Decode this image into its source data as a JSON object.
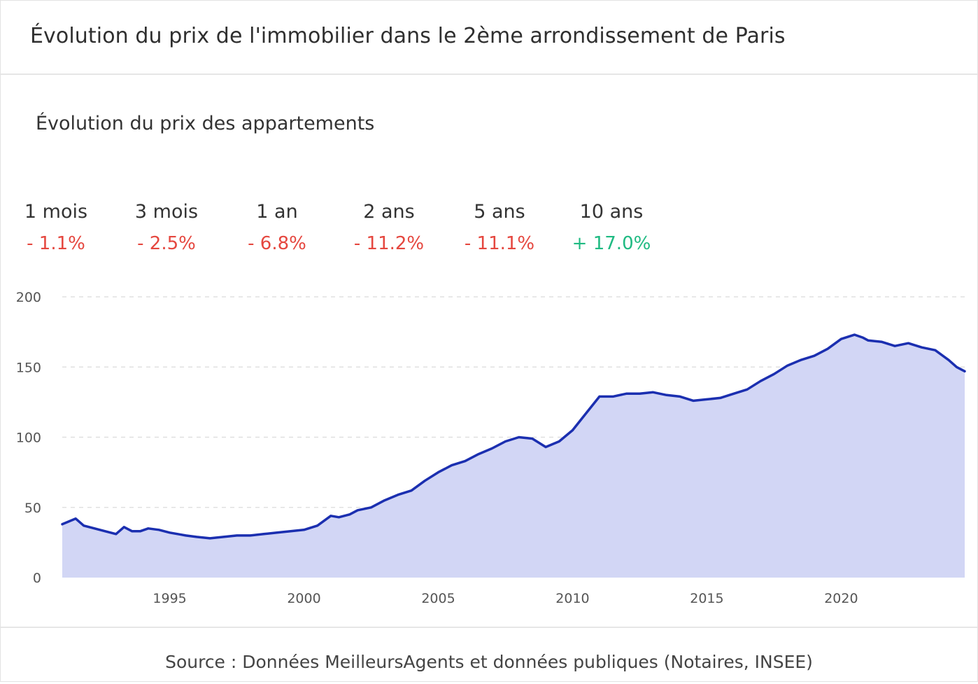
{
  "header": {
    "title": "Évolution du prix de l'immobilier dans le 2ème arrondissement de Paris"
  },
  "chart_subtitle": "Évolution du prix des appartements",
  "stats": [
    {
      "label": "1 mois",
      "value": "- 1.1%",
      "trend": "negative"
    },
    {
      "label": "3 mois",
      "value": "- 2.5%",
      "trend": "negative"
    },
    {
      "label": "1 an",
      "value": "- 6.8%",
      "trend": "negative"
    },
    {
      "label": "2 ans",
      "value": "- 11.2%",
      "trend": "negative"
    },
    {
      "label": "5 ans",
      "value": "- 11.1%",
      "trend": "negative"
    },
    {
      "label": "10 ans",
      "value": "+ 17.0%",
      "trend": "positive"
    }
  ],
  "colors": {
    "negative": "#e5473f",
    "positive": "#1fba82",
    "line": "#1b2fb0",
    "area": "#d2d6f5",
    "grid": "#e0e0e0"
  },
  "chart_data": {
    "type": "area",
    "title": "Évolution du prix des appartements",
    "xlabel": "",
    "ylabel": "",
    "xlim": [
      1991,
      2024.6
    ],
    "ylim": [
      0,
      200
    ],
    "y_ticks": [
      0,
      50,
      100,
      150,
      200
    ],
    "x_ticks": [
      1995,
      2000,
      2005,
      2010,
      2015,
      2020
    ],
    "grid": "horizontal-dashed",
    "legend": "none",
    "series": [
      {
        "x": [
          1991,
          1991.5,
          1991.8,
          1992.2,
          1992.6,
          1993,
          1993.3,
          1993.6,
          1993.9,
          1994.2,
          1994.6,
          1995.0,
          1995.3,
          1995.6,
          1996,
          1996.5,
          1997,
          1997.5,
          1998,
          1998.5,
          1999,
          1999.5,
          2000,
          2000.5,
          2001,
          2001.3,
          2001.7,
          2002,
          2002.5,
          2003,
          2003.5,
          2004,
          2004.5,
          2005,
          2005.5,
          2006,
          2006.5,
          2007,
          2007.5,
          2008,
          2008.5,
          2009,
          2009.5,
          2010,
          2010.5,
          2011,
          2011.5,
          2012,
          2012.5,
          2013,
          2013.5,
          2014,
          2014.5,
          2015,
          2015.5,
          2016,
          2016.5,
          2017,
          2017.5,
          2018,
          2018.5,
          2019,
          2019.5,
          2020,
          2020.5,
          2020.8,
          2021,
          2021.5,
          2022,
          2022.5,
          2023,
          2023.5,
          2024,
          2024.3,
          2024.6
        ],
        "y": [
          38,
          42,
          37,
          35,
          33,
          31,
          36,
          33,
          33,
          35,
          34,
          32,
          31,
          30,
          29,
          28,
          29,
          30,
          30,
          31,
          32,
          33,
          34,
          37,
          44,
          43,
          45,
          48,
          50,
          55,
          59,
          62,
          69,
          75,
          80,
          83,
          88,
          92,
          97,
          100,
          99,
          93,
          97,
          105,
          117,
          129,
          129,
          131,
          131,
          132,
          130,
          129,
          126,
          127,
          128,
          131,
          134,
          140,
          145,
          151,
          155,
          158,
          163,
          170,
          173,
          171,
          169,
          168,
          165,
          167,
          164,
          162,
          155,
          150,
          147
        ]
      }
    ]
  },
  "footer": {
    "source": "Source : Données MeilleursAgents et données publiques (Notaires, INSEE)"
  }
}
